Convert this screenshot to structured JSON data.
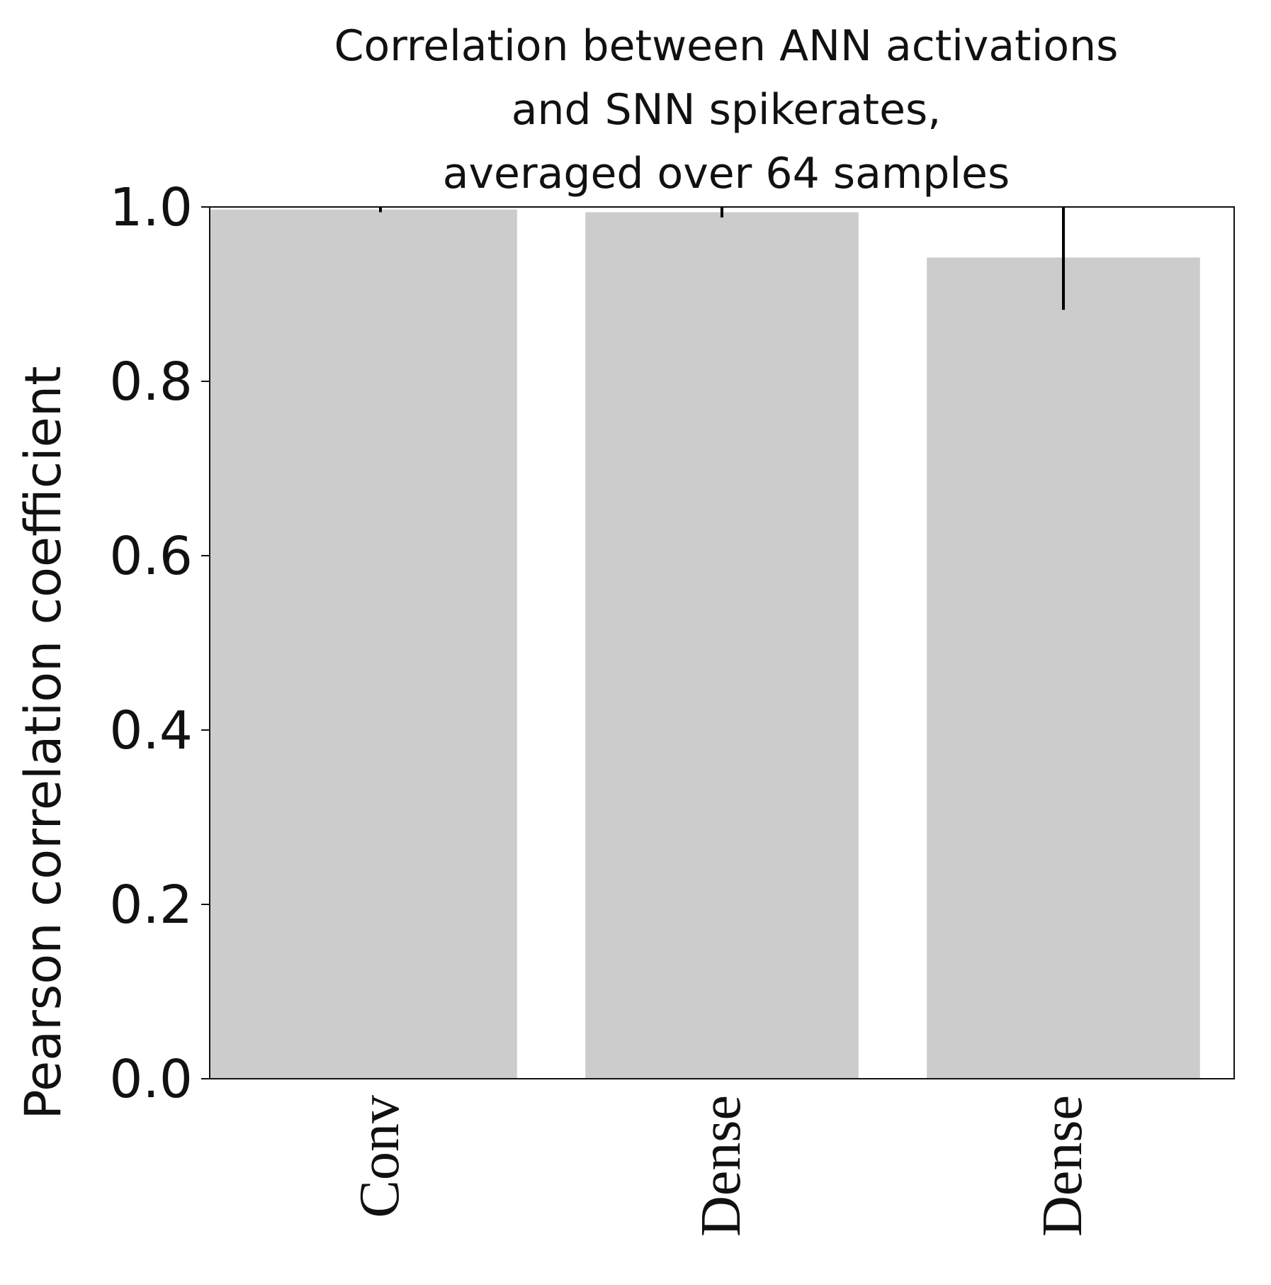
{
  "chart_data": {
    "type": "bar",
    "title_lines": [
      "Correlation between ANN activations",
      "and SNN spikerates,",
      "averaged over 64 samples"
    ],
    "ylabel": "Pearson correlation coefficient",
    "xlabel": "",
    "categories": [
      "Conv",
      "Dense",
      "Dense"
    ],
    "values": [
      0.997,
      0.994,
      0.942
    ],
    "error": [
      0.003,
      0.006,
      0.06
    ],
    "ylim": [
      0.0,
      1.0
    ],
    "yticks": [
      0.0,
      0.2,
      0.4,
      0.6,
      0.8,
      1.0
    ],
    "ytick_labels": [
      "0.0",
      "0.2",
      "0.4",
      "0.6",
      "0.8",
      "1.0"
    ],
    "bar_color": "#cccccc",
    "errorbar_color": "#000000",
    "grid": false
  }
}
